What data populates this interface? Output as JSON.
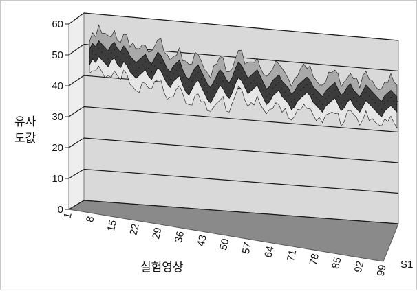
{
  "chart_data": {
    "type": "area",
    "view": "3d",
    "ylabel_lines": [
      "유사",
      "도값"
    ],
    "xlabel": "실험영상",
    "series_label": "S1",
    "ylim": [
      0,
      60
    ],
    "yticks": [
      0,
      10,
      20,
      30,
      40,
      50,
      60
    ],
    "xticks": [
      "1",
      "8",
      "15",
      "22",
      "29",
      "36",
      "43",
      "50",
      "57",
      "64",
      "71",
      "78",
      "85",
      "92",
      "99"
    ],
    "grid": true,
    "colors": {
      "wall": "#d9d9d9",
      "floor": "#8a8a8a",
      "gridline": "#1a1a1a",
      "band_fill": "#3c3c3c",
      "band_outline": "#111111",
      "peaks_fill": "#a9a9a9",
      "dips_fill": "#e6e6e6"
    },
    "series": [
      {
        "values": [
          46,
          48,
          47,
          49,
          48,
          47,
          46,
          48,
          49,
          47,
          46,
          48,
          47,
          45,
          44,
          43,
          44,
          45,
          46,
          44,
          43,
          45,
          47,
          46,
          44,
          42,
          41,
          43,
          44,
          45,
          42,
          40,
          39,
          41,
          43,
          44,
          42,
          40,
          38,
          37,
          39,
          41,
          43,
          42,
          40,
          39,
          41,
          44,
          46,
          45,
          43,
          41,
          42,
          43,
          44,
          42,
          40,
          38,
          39,
          41,
          42,
          43,
          41,
          40,
          39,
          37,
          38,
          40,
          41,
          42,
          43,
          42,
          40,
          39,
          38,
          37,
          39,
          40,
          41,
          42,
          40,
          38,
          39,
          41,
          42,
          40,
          39,
          38,
          40,
          42,
          41,
          40,
          39,
          38,
          37,
          39,
          40,
          41,
          40,
          39
        ]
      }
    ]
  }
}
